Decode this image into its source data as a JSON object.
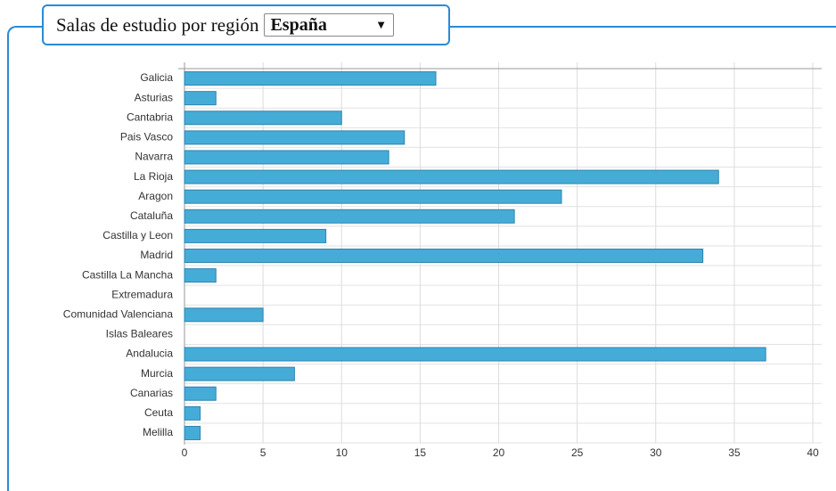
{
  "chart_data": {
    "type": "barh",
    "title": "Salas de estudio por región",
    "selected_region": "España",
    "categories": [
      "Galicia",
      "Asturias",
      "Cantabria",
      "Pais Vasco",
      "Navarra",
      "La Rioja",
      "Aragon",
      "Cataluña",
      "Castilla y Leon",
      "Madrid",
      "Castilla La Mancha",
      "Extremadura",
      "Comunidad Valenciana",
      "Islas Baleares",
      "Andalucia",
      "Murcia",
      "Canarias",
      "Ceuta",
      "Melilla"
    ],
    "values": [
      16,
      2,
      10,
      14,
      13,
      34,
      24,
      21,
      9,
      33,
      2,
      0,
      5,
      0,
      37,
      7,
      2,
      1,
      1
    ],
    "color": "#45acd8",
    "xlim": [
      0,
      40
    ],
    "xticks": [
      0,
      5,
      10,
      15,
      20,
      25,
      30,
      35,
      40
    ],
    "grid": true
  }
}
